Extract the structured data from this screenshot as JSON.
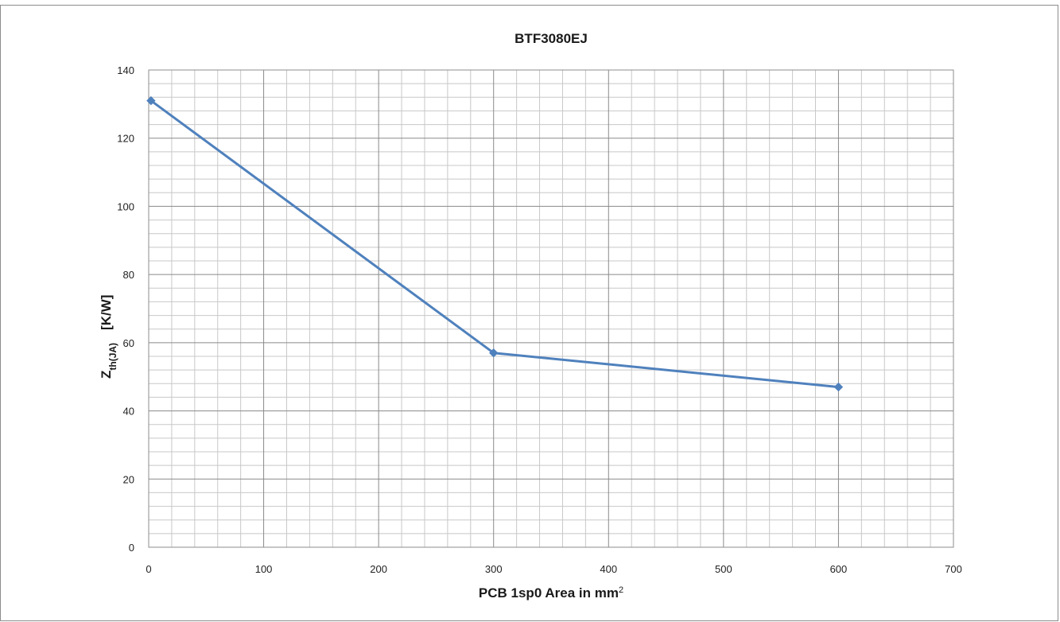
{
  "chart_data": {
    "type": "line",
    "title": "BTF3080EJ",
    "xlabel": {
      "main": "PCB 1sp0 Area in mm",
      "superscript": "2"
    },
    "ylabel": {
      "main": "Z",
      "subscript": "th(JA)",
      "unit": "[K/W]"
    },
    "xlim": [
      0,
      700
    ],
    "ylim": [
      0,
      140
    ],
    "x_ticks": [
      "0",
      "100",
      "200",
      "300",
      "400",
      "500",
      "600",
      "700"
    ],
    "y_ticks": [
      "0",
      "20",
      "40",
      "60",
      "80",
      "100",
      "120",
      "140"
    ],
    "x_major_step": 100,
    "x_minor_step": 20,
    "y_major_step": 20,
    "y_minor_step": 4,
    "grid": true,
    "legend": "none",
    "series": [
      {
        "color": "#4f81bd",
        "marker": "diamond",
        "points": [
          {
            "x": 2,
            "y": 131
          },
          {
            "x": 300,
            "y": 57
          },
          {
            "x": 600,
            "y": 47
          }
        ]
      }
    ]
  }
}
